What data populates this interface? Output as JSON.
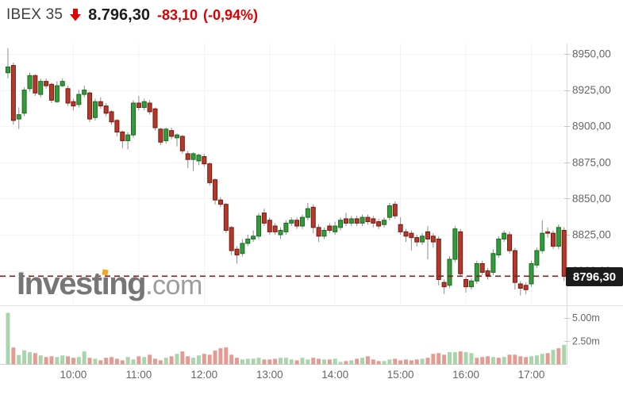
{
  "header": {
    "symbol": "IBEX 35",
    "direction_icon": "down-arrow-icon",
    "last_price": "8.796,30",
    "change": "-83,10",
    "change_percent": "(-0,94%)",
    "symbol_color": "#404040",
    "price_color": "#1c1c1c",
    "change_color": "#de0000",
    "arrow_color": "#e30000"
  },
  "watermark": {
    "text": "Investing.com",
    "prefix": "Invest",
    "dotless_i": "ı",
    "suffix": "ng",
    "domain": ".com",
    "dot_color": "#f5a623"
  },
  "price_tag": {
    "value": "8796,30",
    "bg": "#1b1b1b",
    "text_color": "#ffffff"
  },
  "chart_data": {
    "type": "candlestick_with_volume",
    "symbol": "IBEX 35",
    "interval_min": 5,
    "start_time": "09:00",
    "end_time": "17:30",
    "last_price": 8796.3,
    "ylim": [
      8777,
      8957
    ],
    "grid": true,
    "price_axis_values": [
      8950,
      8925,
      8900,
      8875,
      8850,
      8825,
      8800
    ],
    "price_axis_labels": [
      "8950,00",
      "8925,00",
      "8900,00",
      "8875,00",
      "8850,00",
      "8825,00",
      "8800,00"
    ],
    "time_axis_labels": [
      "10:00",
      "11:00",
      "12:00",
      "13:00",
      "14:00",
      "15:00",
      "16:00",
      "17:00"
    ],
    "volume_axis_values": [
      5.0,
      2.5
    ],
    "volume_axis_labels": [
      "5.00m",
      "2.50m"
    ],
    "volume_unit": "m",
    "colors": {
      "up_fill": "#349a3c",
      "up_border": "#176b1e",
      "down_fill": "#b13a2d",
      "down_border": "#79170e",
      "wick": "#8c8c8c",
      "vol_up": "#a9d4ac",
      "vol_down": "#e39c94",
      "dashed_line": "#7e1f1f",
      "grid": "#f3f3f3",
      "axis_line": "#d8d8d8",
      "divider": "#e3e3e3",
      "baseline": "#cfcfcf",
      "tick": "#c4c4c4",
      "label": "#666666"
    },
    "candles": [
      [
        8937,
        8954,
        8933,
        8941,
        5.5,
        "g"
      ],
      [
        8942,
        8944,
        8901,
        8904,
        1.8,
        "r"
      ],
      [
        8905,
        8913,
        8898,
        8908,
        1.0,
        "g"
      ],
      [
        8909,
        8927,
        8907,
        8925,
        1.5,
        "g"
      ],
      [
        8926,
        8937,
        8924,
        8935,
        1.3,
        "g"
      ],
      [
        8935,
        8936,
        8921,
        8923,
        1.2,
        "r"
      ],
      [
        8922,
        8933,
        8920,
        8931,
        0.95,
        "g"
      ],
      [
        8931,
        8933,
        8926,
        8928,
        0.78,
        "r"
      ],
      [
        8929,
        8930,
        8916,
        8918,
        0.86,
        "r"
      ],
      [
        8917,
        8931,
        8916,
        8928,
        0.78,
        "g"
      ],
      [
        8928,
        8933,
        8927,
        8931,
        0.95,
        "g"
      ],
      [
        8926,
        8928,
        8914,
        8916,
        0.86,
        "r"
      ],
      [
        8917,
        8919,
        8911,
        8914,
        0.7,
        "r"
      ],
      [
        8915,
        8925,
        8913,
        8922,
        0.78,
        "g"
      ],
      [
        8922,
        8928,
        8920,
        8925,
        1.38,
        "g"
      ],
      [
        8923,
        8924,
        8903,
        8905,
        0.7,
        "r"
      ],
      [
        8906,
        8919,
        8904,
        8917,
        0.6,
        "g"
      ],
      [
        8917,
        8920,
        8912,
        8914,
        0.43,
        "r"
      ],
      [
        8914,
        8916,
        8907,
        8909,
        0.7,
        "r"
      ],
      [
        8910,
        8911,
        8901,
        8903,
        0.78,
        "r"
      ],
      [
        8904,
        8905,
        8893,
        8896,
        0.6,
        "r"
      ],
      [
        8896,
        8897,
        8885,
        8890,
        0.43,
        "r"
      ],
      [
        8890,
        8896,
        8884,
        8894,
        0.78,
        "g"
      ],
      [
        8894,
        8918,
        8892,
        8916,
        0.52,
        "g"
      ],
      [
        8916,
        8921,
        8911,
        8913,
        0.86,
        "r"
      ],
      [
        8913,
        8919,
        8911,
        8917,
        0.78,
        "g"
      ],
      [
        8916,
        8918,
        8908,
        8910,
        1.03,
        "r"
      ],
      [
        8912,
        8913,
        8897,
        8899,
        0.6,
        "r"
      ],
      [
        8898,
        8899,
        8887,
        8889,
        0.43,
        "r"
      ],
      [
        8890,
        8899,
        8888,
        8898,
        0.7,
        "g"
      ],
      [
        8897,
        8899,
        8891,
        8893,
        0.86,
        "r"
      ],
      [
        8892,
        8895,
        8886,
        8894,
        1.12,
        "g"
      ],
      [
        8893,
        8894,
        8881,
        8883,
        1.38,
        "r"
      ],
      [
        8881,
        8883,
        8871,
        8877,
        0.86,
        "r"
      ],
      [
        8877,
        8882,
        8869,
        8881,
        0.7,
        "g"
      ],
      [
        8876,
        8881,
        8873,
        8880,
        0.95,
        "g"
      ],
      [
        8879,
        8881,
        8872,
        8874,
        1.12,
        "r"
      ],
      [
        8874,
        8875,
        8859,
        8861,
        1.03,
        "r"
      ],
      [
        8863,
        8864,
        8846,
        8849,
        1.47,
        "r"
      ],
      [
        8849,
        8851,
        8844,
        8846,
        1.72,
        "r"
      ],
      [
        8846,
        8847,
        8826,
        8828,
        1.81,
        "r"
      ],
      [
        8830,
        8831,
        8811,
        8814,
        1.03,
        "r"
      ],
      [
        8815,
        8817,
        8805,
        8811,
        0.7,
        "r"
      ],
      [
        8812,
        8822,
        8810,
        8819,
        0.52,
        "g"
      ],
      [
        8819,
        8825,
        8817,
        8822,
        0.6,
        "g"
      ],
      [
        8822,
        8828,
        8820,
        8824,
        0.6,
        "g"
      ],
      [
        8824,
        8840,
        8822,
        8838,
        0.7,
        "g"
      ],
      [
        8840,
        8843,
        8831,
        8833,
        0.52,
        "r"
      ],
      [
        8835,
        8837,
        8825,
        8827,
        0.52,
        "r"
      ],
      [
        8831,
        8833,
        8825,
        8827,
        0.6,
        "r"
      ],
      [
        8825,
        8830,
        8822,
        8828,
        0.7,
        "g"
      ],
      [
        8827,
        8835,
        8825,
        8833,
        0.7,
        "g"
      ],
      [
        8833,
        8837,
        8831,
        8835,
        0.52,
        "g"
      ],
      [
        8835,
        8837,
        8829,
        8831,
        0.43,
        "r"
      ],
      [
        8831,
        8839,
        8829,
        8837,
        0.7,
        "g"
      ],
      [
        8837,
        8847,
        8835,
        8843,
        0.52,
        "g"
      ],
      [
        8844,
        8846,
        8826,
        8830,
        0.7,
        "r"
      ],
      [
        8830,
        8832,
        8820,
        8824,
        0.6,
        "r"
      ],
      [
        8824,
        8830,
        8822,
        8828,
        0.52,
        "g"
      ],
      [
        8831,
        8833,
        8826,
        8828,
        0.52,
        "r"
      ],
      [
        8827,
        8834,
        8825,
        8831,
        0.6,
        "g"
      ],
      [
        8830,
        8837,
        8828,
        8835,
        0.26,
        "g"
      ],
      [
        8836,
        8840,
        8831,
        8833,
        0.35,
        "r"
      ],
      [
        8833,
        8838,
        8831,
        8836,
        0.43,
        "g"
      ],
      [
        8836,
        8838,
        8831,
        8833,
        0.6,
        "r"
      ],
      [
        8833,
        8839,
        8831,
        8837,
        0.7,
        "g"
      ],
      [
        8837,
        8839,
        8832,
        8834,
        0.86,
        "r"
      ],
      [
        8836,
        8838,
        8830,
        8833,
        0.52,
        "r"
      ],
      [
        8834,
        8836,
        8829,
        8831,
        0.35,
        "r"
      ],
      [
        8832,
        8837,
        8830,
        8835,
        0.35,
        "g"
      ],
      [
        8837,
        8847,
        8835,
        8845,
        0.52,
        "g"
      ],
      [
        8846,
        8848,
        8836,
        8838,
        0.6,
        "r"
      ],
      [
        8832,
        8837,
        8825,
        8827,
        0.43,
        "r"
      ],
      [
        8827,
        8829,
        8820,
        8824,
        0.52,
        "r"
      ],
      [
        8826,
        8828,
        8814,
        8823,
        0.43,
        "r"
      ],
      [
        8823,
        8825,
        8817,
        8820,
        0.52,
        "r"
      ],
      [
        8820,
        8826,
        8818,
        8824,
        0.6,
        "g"
      ],
      [
        8827,
        8831,
        8808,
        8822,
        0.7,
        "r"
      ],
      [
        8824,
        8826,
        8816,
        8820,
        1.12,
        "r"
      ],
      [
        8822,
        8824,
        8790,
        8794,
        1.2,
        "r"
      ],
      [
        8792,
        8794,
        8784,
        8789,
        1.03,
        "r"
      ],
      [
        8790,
        8810,
        8788,
        8808,
        1.3,
        "g"
      ],
      [
        8808,
        8831,
        8806,
        8829,
        1.3,
        "g"
      ],
      [
        8827,
        8829,
        8796,
        8798,
        1.38,
        "r"
      ],
      [
        8794,
        8796,
        8785,
        8789,
        1.3,
        "g"
      ],
      [
        8789,
        8795,
        8787,
        8793,
        1.2,
        "g"
      ],
      [
        8793,
        8807,
        8791,
        8805,
        0.7,
        "r"
      ],
      [
        8805,
        8807,
        8797,
        8799,
        0.78,
        "r"
      ],
      [
        8800,
        8802,
        8794,
        8797,
        0.86,
        "r"
      ],
      [
        8799,
        8815,
        8797,
        8812,
        0.78,
        "g"
      ],
      [
        8811,
        8824,
        8809,
        8822,
        0.7,
        "r"
      ],
      [
        8822,
        8828,
        8820,
        8826,
        0.78,
        "g"
      ],
      [
        8825,
        8827,
        8812,
        8814,
        1.03,
        "r"
      ],
      [
        8814,
        8816,
        8787,
        8792,
        1.03,
        "r"
      ],
      [
        8791,
        8793,
        8783,
        8788,
        0.86,
        "r"
      ],
      [
        8790,
        8792,
        8784,
        8787,
        0.78,
        "r"
      ],
      [
        8791,
        8807,
        8789,
        8805,
        0.86,
        "g"
      ],
      [
        8804,
        8816,
        8802,
        8814,
        0.95,
        "g"
      ],
      [
        8814,
        8835,
        8812,
        8826,
        1.12,
        "g"
      ],
      [
        8827,
        8830,
        8823,
        8826,
        1.2,
        "r"
      ],
      [
        8826,
        8828,
        8815,
        8817,
        1.55,
        "g"
      ],
      [
        8817,
        8832,
        8815,
        8830,
        1.72,
        "r"
      ],
      [
        8828,
        8830,
        8793,
        8796.3,
        2.07,
        "g"
      ]
    ]
  }
}
